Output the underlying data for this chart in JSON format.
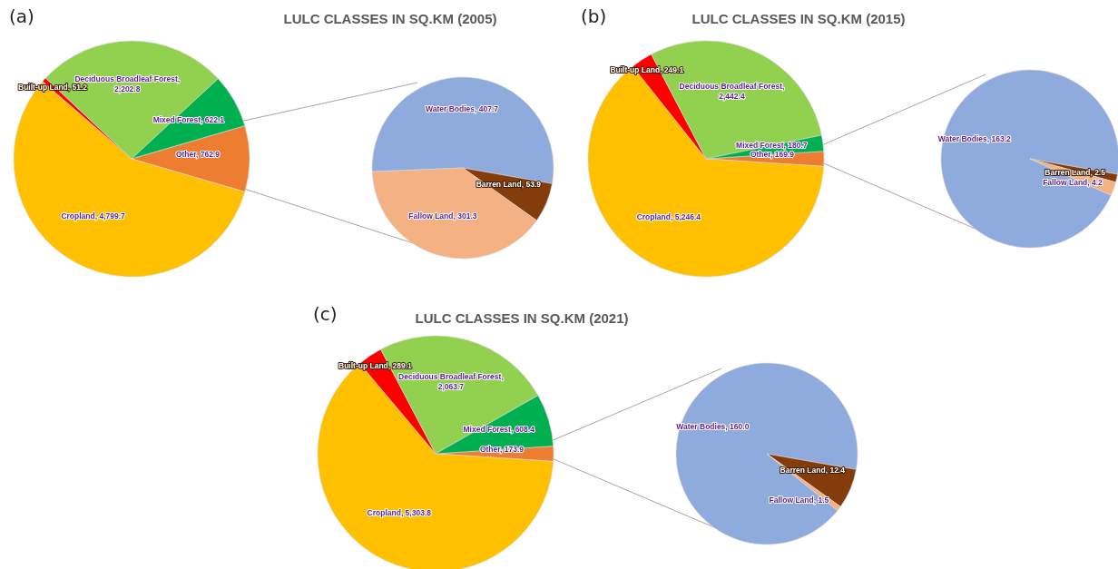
{
  "chart_data": [
    {
      "type": "pie",
      "title": "LULC CLASSES IN SQ.KM (2005)",
      "annotations": [
        "(a)"
      ],
      "categories": [
        "Other",
        "Cropland",
        "Built-up Land",
        "Deciduous Broadleaf Forest",
        "Mixed Forest"
      ],
      "values": [
        762.9,
        4799.7,
        51.2,
        2202.8,
        622.1
      ],
      "value_labels": [
        ", 762.9",
        ", 4,799.7",
        ", 51.2",
        ", 2,202.8",
        ", 622.1"
      ],
      "colors": [
        "#ed7d31",
        "#ffc000",
        "#ff0000",
        "#92d050",
        "#00b050"
      ]
    },
    {
      "type": "pie",
      "categories": [
        "Water Bodies",
        "Barren Land",
        "Fallow Land"
      ],
      "values": [
        407.7,
        53.9,
        301.3
      ],
      "value_labels": [
        ", 407.7",
        ", 53.9",
        ", 301.3"
      ],
      "colors": [
        "#8faadc",
        "#843c0c",
        "#f4b183"
      ]
    },
    {
      "type": "pie",
      "title": "LULC CLASSES IN SQ.KM (2015)",
      "annotations": [
        "(b)"
      ],
      "categories": [
        "Other",
        "Cropland",
        "Built-up Land",
        "Deciduous Broadleaf Forest",
        "Mixed Forest"
      ],
      "values": [
        169.9,
        5246.4,
        249.1,
        2442.4,
        180.7
      ],
      "value_labels": [
        ", 169.9",
        ", 5,246.4",
        ", 249.1",
        ", 2,442.4",
        ", 180.7"
      ],
      "colors": [
        "#ed7d31",
        "#ffc000",
        "#ff0000",
        "#92d050",
        "#00b050"
      ]
    },
    {
      "type": "pie",
      "categories": [
        "Water Bodies",
        "Barren Land",
        "Fallow Land"
      ],
      "values": [
        163.2,
        2.5,
        4.2
      ],
      "value_labels": [
        ", 163.2",
        ", 2.5",
        ", 4.2"
      ],
      "colors": [
        "#8faadc",
        "#843c0c",
        "#f4b183"
      ]
    },
    {
      "type": "pie",
      "title": "LULC CLASSES IN SQ.KM (2021)",
      "annotations": [
        "(c)"
      ],
      "categories": [
        "Other",
        "Cropland",
        "Built-up Land",
        "Deciduous Broadleaf Forest",
        "Mixed Forest"
      ],
      "values": [
        173.9,
        5303.8,
        289.1,
        2063.7,
        608.4
      ],
      "value_labels": [
        ", 173.9",
        ", 5,303.8",
        ", 289.1",
        ", 2,063.7",
        ", 608.4"
      ],
      "colors": [
        "#ed7d31",
        "#ffc000",
        "#ff0000",
        "#92d050",
        "#00b050"
      ]
    },
    {
      "type": "pie",
      "categories": [
        "Water Bodies",
        "Barren Land",
        "Fallow Land"
      ],
      "values": [
        160.0,
        12.4,
        1.5
      ],
      "value_labels": [
        ", 160.0",
        ", 12.4",
        ", 1.5"
      ],
      "colors": [
        "#8faadc",
        "#843c0c",
        "#f4b183"
      ]
    }
  ]
}
